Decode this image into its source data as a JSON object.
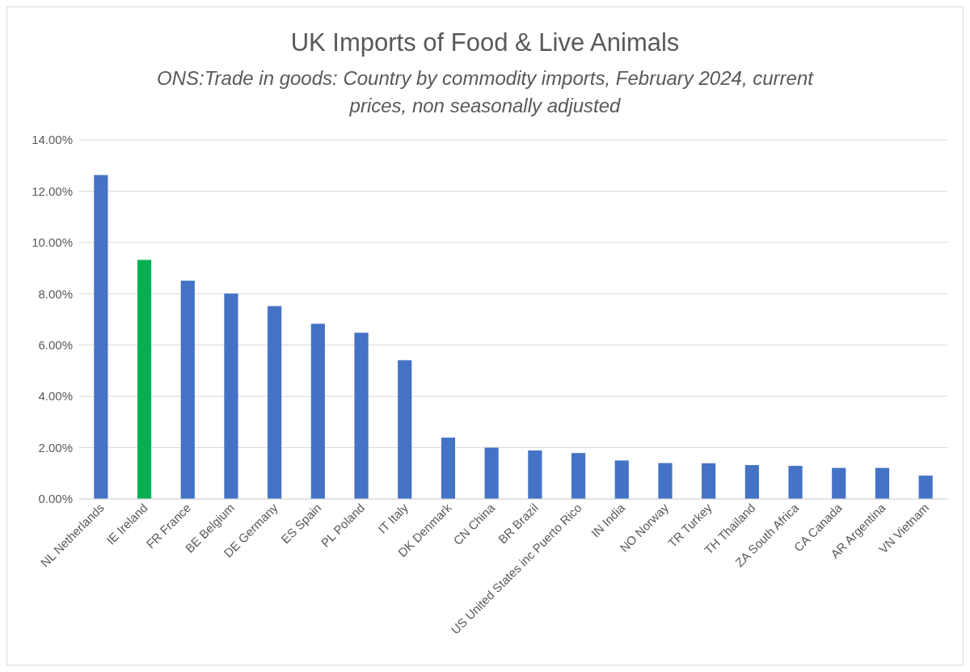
{
  "chart_data": {
    "type": "bar",
    "title": "UK Imports of Food & Live Animals",
    "subtitle": "ONS:Trade in goods: Country by commodity imports, February 2024, current prices, non seasonally adjusted",
    "categories": [
      "NL Netherlands",
      "IE Ireland",
      "FR France",
      "BE Belgium",
      "DE Germany",
      "ES Spain",
      "PL Poland",
      "IT Italy",
      "DK Denmark",
      "CN China",
      "BR Brazil",
      "US United States inc Puerto Rico",
      "IN India",
      "NO Norway",
      "TR Turkey",
      "TH Thailand",
      "ZA South Africa",
      "CA Canada",
      "AR Argentina",
      "VN Vietnam"
    ],
    "values": [
      12.63,
      9.32,
      8.51,
      8.01,
      7.52,
      6.83,
      6.48,
      5.41,
      2.39,
      2.0,
      1.89,
      1.79,
      1.5,
      1.4,
      1.39,
      1.32,
      1.29,
      1.21,
      1.21,
      0.91
    ],
    "colors": [
      "#4472c4",
      "#00b050",
      "#4472c4",
      "#4472c4",
      "#4472c4",
      "#4472c4",
      "#4472c4",
      "#4472c4",
      "#4472c4",
      "#4472c4",
      "#4472c4",
      "#4472c4",
      "#4472c4",
      "#4472c4",
      "#4472c4",
      "#4472c4",
      "#4472c4",
      "#4472c4",
      "#4472c4",
      "#4472c4"
    ],
    "ylim": [
      0,
      14
    ],
    "yticks": [
      {
        "value": 0,
        "label": "0.00%"
      },
      {
        "value": 2,
        "label": "2.00%"
      },
      {
        "value": 4,
        "label": "4.00%"
      },
      {
        "value": 6,
        "label": "6.00%"
      },
      {
        "value": 8,
        "label": "8.00%"
      },
      {
        "value": 10,
        "label": "10.00%"
      },
      {
        "value": 12,
        "label": "12.00%"
      },
      {
        "value": 14,
        "label": "14.00%"
      }
    ],
    "grid": "y"
  }
}
